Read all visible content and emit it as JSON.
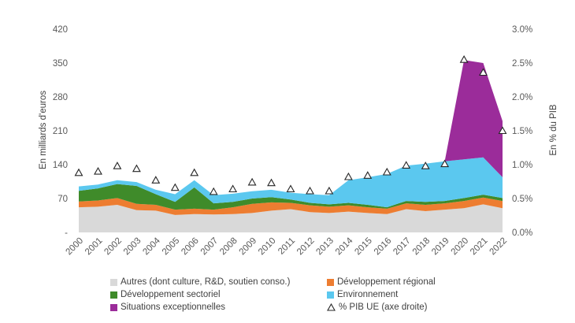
{
  "chart_data": {
    "type": "area",
    "title": "",
    "ylabel": "En milliards d'euros",
    "y2label": "En % du PIB",
    "ylim": [
      0,
      420
    ],
    "y2lim": [
      0,
      3.0
    ],
    "yticks": [
      "-",
      "70",
      "140",
      "210",
      "280",
      "350",
      "420"
    ],
    "y2ticks": [
      "0.0%",
      "0.5%",
      "1.0%",
      "1.5%",
      "2.0%",
      "2.5%",
      "3.0%"
    ],
    "categories": [
      "2000",
      "2001",
      "2002",
      "2003",
      "2004",
      "2005",
      "2006",
      "2007",
      "2008",
      "2009",
      "2010",
      "2011",
      "2012",
      "2013",
      "2014",
      "2015",
      "2016",
      "2017",
      "2018",
      "2019",
      "2020",
      "2021",
      "2022"
    ],
    "series": [
      {
        "name": "Autres (dont culture, R&D, soutien conso.)",
        "color": "#d9d9d9",
        "values": [
          52,
          53,
          57,
          46,
          45,
          36,
          38,
          37,
          38,
          40,
          45,
          48,
          42,
          40,
          43,
          40,
          38,
          48,
          44,
          47,
          50,
          58,
          50
        ]
      },
      {
        "name": "Développement régional",
        "color": "#ed7d31",
        "values": [
          12,
          13,
          14,
          13,
          12,
          11,
          11,
          10,
          14,
          19,
          17,
          13,
          14,
          13,
          13,
          12,
          11,
          12,
          13,
          13,
          15,
          14,
          15
        ]
      },
      {
        "name": "Développement sectoriel",
        "color": "#3f8b2a",
        "values": [
          22,
          25,
          29,
          37,
          22,
          16,
          44,
          13,
          11,
          11,
          11,
          7,
          5,
          5,
          5,
          5,
          3,
          5,
          6,
          5,
          6,
          6,
          6
        ]
      },
      {
        "name": "Environnement",
        "color": "#5bc8ef",
        "values": [
          9,
          8,
          8,
          8,
          9,
          16,
          15,
          17,
          17,
          15,
          15,
          14,
          18,
          19,
          47,
          57,
          69,
          73,
          79,
          82,
          80,
          77,
          43
        ]
      },
      {
        "name": "Situations exceptionnelles",
        "color": "#9b2c9a",
        "values": [
          0,
          0,
          0,
          0,
          0,
          0,
          0,
          0,
          0,
          0,
          0,
          0,
          0,
          0,
          0,
          0,
          0,
          0,
          0,
          0,
          205,
          195,
          116
        ]
      }
    ],
    "line_series": {
      "name": "% PIB UE (axe droite)",
      "axis": "right",
      "values": [
        0.88,
        0.9,
        0.98,
        0.94,
        0.77,
        0.66,
        0.88,
        0.6,
        0.64,
        0.74,
        0.73,
        0.64,
        0.61,
        0.61,
        0.82,
        0.84,
        0.89,
        0.99,
        0.98,
        1.01,
        2.55,
        2.36,
        1.5
      ]
    }
  },
  "legend": {
    "items": [
      {
        "label": "Autres (dont culture, R&D, soutien conso.)",
        "color": "#d9d9d9"
      },
      {
        "label": "Développement régional",
        "color": "#ed7d31"
      },
      {
        "label": "Développement sectoriel",
        "color": "#3f8b2a"
      },
      {
        "label": "Environnement",
        "color": "#5bc8ef"
      },
      {
        "label": "Situations exceptionnelles",
        "color": "#9b2c9a"
      },
      {
        "label": "% PIB UE (axe droite)",
        "marker": "triangle"
      }
    ]
  }
}
